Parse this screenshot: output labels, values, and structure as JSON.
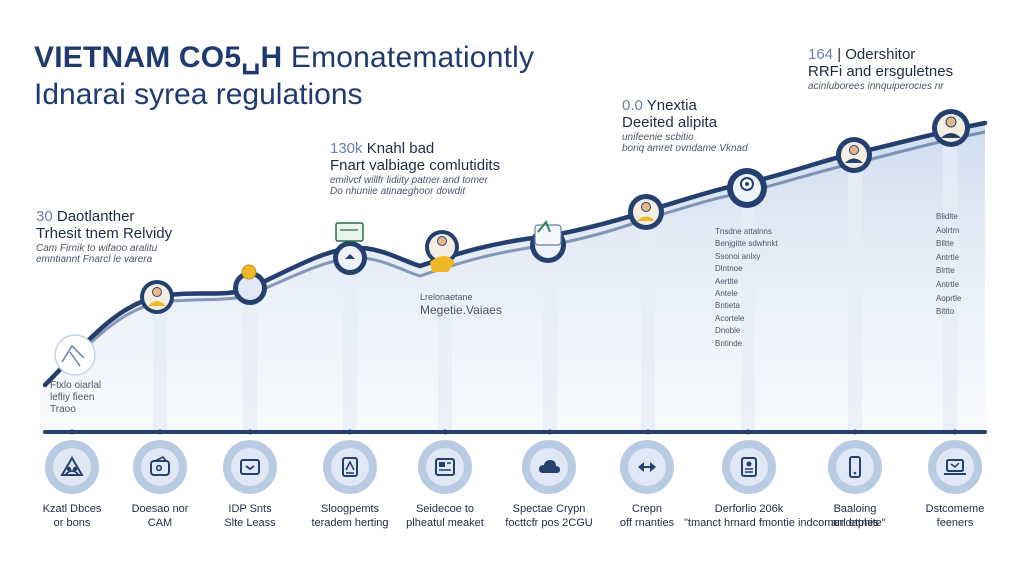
{
  "title": {
    "line1_bold": "VIETNAM CO5␣H",
    "line1_rest": " Emonatemationtly",
    "line2": "Idnarai syrea regulations"
  },
  "annotations": {
    "a1": {
      "num": "30",
      "head": " Daotlanther",
      "sub": "Trhesit tnem Relvidy",
      "desc": [
        "Cam Firnik to wifaoo aralitu",
        "emntiannt Fnarcl le varera"
      ]
    },
    "a2": {
      "num": "130k",
      "head": " Knahl bad",
      "sub": "Fnart valbiage comlutidits",
      "desc": [
        "emilvcf willfr lidiity patner and tomer",
        "Do nhuniie atinaeghoor dowdit"
      ]
    },
    "a3": {
      "num": "0.0",
      "head": " Ynextia",
      "sub": "Deeited alipita",
      "desc": [
        "unifeenie scbitio",
        "boriq amret ovndame Vknad"
      ]
    },
    "a4": {
      "num": "164",
      "head": " | Odershitor",
      "sub": "RRFi and ersguletnes",
      "desc": [
        "acinluborees innquiperocies nr"
      ]
    }
  },
  "small_notes": {
    "left_note": [
      "Ftxlo oiarlal",
      "lefliy fieen",
      "Traoo"
    ],
    "mid_note": [
      "Lrelonaetane",
      "Megetie.Vaiaes"
    ],
    "right_col_notes": [
      "Tnsdne attalnns",
      "Benjgitte sdwhnkt",
      "Ssonoi anlxy",
      "Dlntnoe",
      "Aertlte",
      "Antele",
      "Bntieta",
      "Acortele",
      "Dnoble",
      "Bntinde"
    ],
    "far_right_notes": [
      "Blidlte",
      "Aolrtrn",
      "Blltte",
      "Antrtle",
      "Blrtte",
      "Antrtle",
      "Aoprtle",
      "Blttto"
    ]
  },
  "bottom_items": [
    {
      "icon": "warning-people-icon",
      "line1": "Kzatl Dbces",
      "line2": "or bons"
    },
    {
      "icon": "wallet-icon",
      "line1": "Doesao nor",
      "line2": "CAM"
    },
    {
      "icon": "document-icon",
      "line1": "IDP Snts",
      "line2": "Slte Leass"
    },
    {
      "icon": "clipboard-icon",
      "line1": "Sloogpemts",
      "line2": "teradem herting"
    },
    {
      "icon": "news-icon",
      "line1": "Seidecoe to",
      "line2": "plheatul meaket"
    },
    {
      "icon": "cloud-icon",
      "line1": "Spectae Crypn",
      "line2": "focttcfr pos 2CGU"
    },
    {
      "icon": "exchange-icon",
      "line1": "Crepn",
      "line2": "off rnanties"
    },
    {
      "icon": "id-card-icon",
      "line1": "Derforlio 206k",
      "line2": "\"tmanct hrnard fmontie indcomendaphite\""
    },
    {
      "icon": "phone-icon",
      "line1": "Baaloing",
      "line2": "anl ettnes"
    },
    {
      "icon": "laptop-icon",
      "line1": "Dstcomeme",
      "line2": "feeners"
    }
  ],
  "colors": {
    "navy": "#1e3a6e",
    "line": "#233f6e",
    "area": "#dce7f4",
    "pill_outer": "#b9cbe3",
    "pill_inner": "#dfe8f4"
  }
}
